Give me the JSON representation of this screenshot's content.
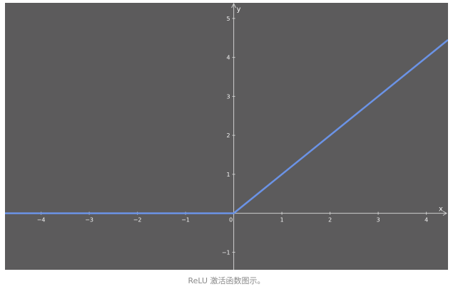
{
  "caption": "ReLU 激活函数图示。",
  "chart_data": {
    "type": "line",
    "title": "",
    "xlabel": "x",
    "ylabel": "y",
    "xlim": [
      -4.75,
      4.45
    ],
    "ylim": [
      -1.45,
      5.4
    ],
    "xticks": [
      -4,
      -3,
      -2,
      -1,
      0,
      1,
      2,
      3,
      4
    ],
    "xtick_labels": [
      "−4",
      "−3",
      "−2",
      "−1",
      "0",
      "1",
      "2",
      "3",
      "4"
    ],
    "yticks": [
      -1,
      1,
      2,
      3,
      4,
      5
    ],
    "ytick_labels": [
      "−1",
      "1",
      "2",
      "3",
      "4",
      "5"
    ],
    "grid": false,
    "legend": "none",
    "series": [
      {
        "x": [
          -4.75,
          0,
          4.45
        ],
        "y": [
          0,
          0,
          4.45
        ]
      }
    ],
    "colors": {
      "background": "#5c5b5c",
      "axis": "#cfcfcf",
      "line": "#6b93e6",
      "tick_text": "#f2f2f2"
    }
  }
}
